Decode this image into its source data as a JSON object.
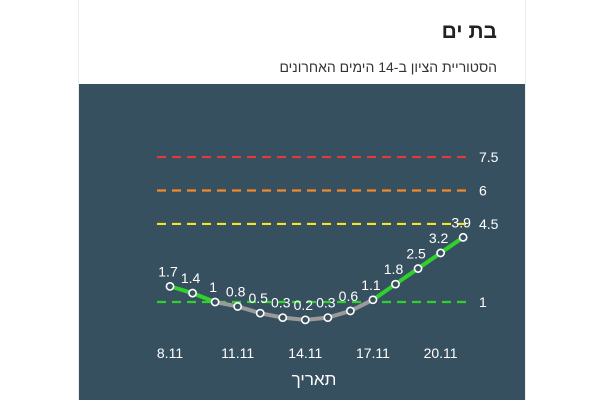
{
  "header": {
    "title": "בת ים",
    "subtitle": "הסטוריית הציון ב-14 הימים האחרונים"
  },
  "colors": {
    "background": "#37505f",
    "red_line": "#e03a3a",
    "orange_line": "#f08a2a",
    "yellow_line": "#f4e32a",
    "green_line": "#2fd12f",
    "gray_line": "#9a9a9a"
  },
  "chart_data": {
    "type": "line",
    "xlabel": "תאריך",
    "x_ticks": [
      "8.11",
      "11.11",
      "14.11",
      "17.11",
      "20.11"
    ],
    "x_tick_indices": [
      0,
      3,
      6,
      9,
      12
    ],
    "values": [
      1.7,
      1.4,
      1,
      0.8,
      0.5,
      0.3,
      0.2,
      0.3,
      0.6,
      1.1,
      1.8,
      2.5,
      3.2,
      3.9
    ],
    "value_labels": [
      "1.7",
      "1.4",
      "1",
      "0.8",
      "0.5",
      "0.3",
      "0.2",
      "0.3",
      "0.6",
      "1.1",
      "1.8",
      "2.5",
      "3.2",
      "3.9"
    ],
    "thresholds": [
      {
        "value": 7.5,
        "label": "7.5",
        "color": "#e03a3a"
      },
      {
        "value": 6,
        "label": "6",
        "color": "#f08a2a"
      },
      {
        "value": 4.5,
        "label": "4.5",
        "color": "#f4e32a"
      },
      {
        "value": 1,
        "label": "1",
        "color": "#2fd12f"
      }
    ],
    "line_colors": {
      "above_threshold": "#2fd12f",
      "below_threshold": "#9a9a9a"
    },
    "grid": false,
    "legend": "none"
  }
}
